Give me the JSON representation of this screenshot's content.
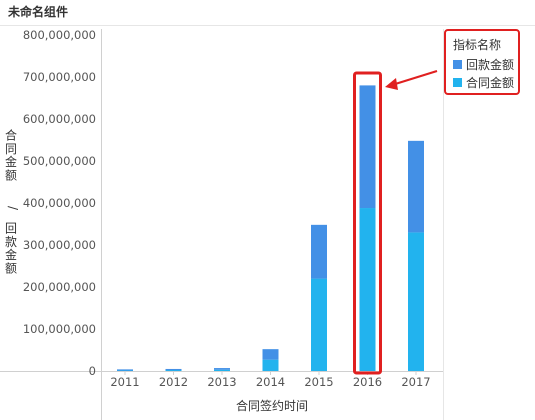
{
  "widget": {
    "title": "未命名组件"
  },
  "colors": {
    "huikuan": "#4390e6",
    "hetong": "#22b3ee",
    "highlight": "#e02020",
    "axis": "#d0d0d0"
  },
  "chart_data": {
    "type": "bar",
    "stacked": true,
    "categories": [
      "2011",
      "2012",
      "2013",
      "2014",
      "2015",
      "2016",
      "2017"
    ],
    "series": [
      {
        "name": "合同金额",
        "color": "#22b3ee",
        "values": [
          1000000,
          2000000,
          3000000,
          27000000,
          220000000,
          388000000,
          330000000
        ]
      },
      {
        "name": "回款金额",
        "color": "#4390e6",
        "values": [
          1500000,
          2000000,
          4000000,
          25000000,
          128000000,
          292000000,
          218000000
        ]
      }
    ],
    "legend_order": [
      "回款金额",
      "合同金额"
    ],
    "legend_title": "指标名称",
    "legend_position": "top-right",
    "xlabel": "合同签约时间",
    "ylabel": "合同金额 / 回款金额",
    "ylim": [
      0,
      800000000
    ],
    "yticks": [
      0,
      100000000,
      200000000,
      300000000,
      400000000,
      500000000,
      600000000,
      700000000,
      800000000
    ],
    "ytick_labels": [
      "0",
      "100,000,000",
      "200,000,000",
      "300,000,000",
      "400,000,000",
      "500,000,000",
      "600,000,000",
      "700,000,000",
      "800,000,000"
    ],
    "grid": false,
    "highlighted_category": "2016"
  }
}
